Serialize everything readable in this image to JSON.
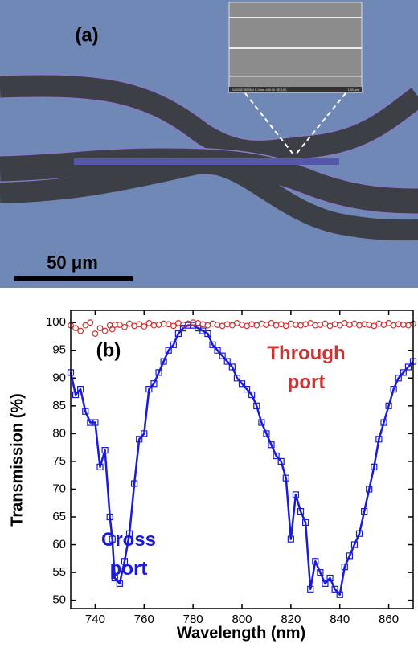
{
  "image_panel": {
    "label": "(a)",
    "scale_bar": "50 μm",
    "inset_caption": "SU8240 30.0kV 6.2mm x30.0k SE(UL)",
    "inset_scale": "1.00μm"
  },
  "chart_data": {
    "type": "line",
    "annotation": "(b)",
    "x_label": "Wavelength (nm)",
    "y_label": "Transmission (%)",
    "xlim": [
      730,
      870
    ],
    "ylim": [
      48.5,
      102.2
    ],
    "xticks": [
      740,
      760,
      780,
      800,
      820,
      840,
      860
    ],
    "yticks": [
      50,
      55,
      60,
      65,
      70,
      75,
      80,
      85,
      90,
      95,
      100
    ],
    "x": [
      730,
      732,
      734,
      736,
      738,
      740,
      742,
      744,
      746,
      747,
      748,
      750,
      752,
      754,
      756,
      758,
      760,
      762,
      764,
      766,
      768,
      770,
      772,
      774,
      776,
      778,
      780,
      782,
      784,
      786,
      788,
      790,
      792,
      794,
      796,
      798,
      800,
      802,
      804,
      806,
      808,
      810,
      812,
      814,
      816,
      818,
      820,
      822,
      824,
      826,
      828,
      830,
      832,
      834,
      836,
      838,
      840,
      842,
      844,
      846,
      848,
      850,
      852,
      854,
      856,
      858,
      860,
      862,
      864,
      866,
      868,
      870
    ],
    "series": [
      {
        "name": "Cross port",
        "color": "#1a1adb",
        "marker": "square",
        "line": true,
        "values": [
          91,
          87,
          88,
          84,
          82,
          82,
          74,
          77,
          65,
          61,
          54,
          53,
          57,
          62,
          71,
          79,
          80,
          88,
          89,
          91,
          93,
          95,
          96,
          98,
          99,
          99.5,
          99.5,
          99,
          98.5,
          98,
          96,
          95,
          94,
          93,
          92,
          90,
          89,
          88,
          87,
          85,
          82,
          80,
          78,
          76,
          75,
          72,
          61,
          69,
          66,
          64,
          52,
          57,
          55,
          53,
          54,
          52,
          51,
          56,
          58,
          60,
          62,
          66,
          70,
          74,
          79,
          82,
          85,
          88,
          90,
          91,
          92,
          93
        ]
      },
      {
        "name": "Through port",
        "color": "#cc3333",
        "marker": "circle",
        "line": false,
        "values": [
          99.5,
          99,
          98.5,
          99.5,
          100,
          98,
          99,
          98.5,
          99.5,
          98.8,
          99.6,
          99.6,
          99.2,
          99.8,
          99.4,
          99.7,
          99.3,
          99.9,
          99.5,
          99.6,
          99.8,
          99.7,
          99.4,
          99.9,
          99.6,
          99.8,
          100,
          99.9,
          99.7,
          99.5,
          99.8,
          99.6,
          99.4,
          99.7,
          99.5,
          99.9,
          99.6,
          99.4,
          99.7,
          99.5,
          99.8,
          99.6,
          99.9,
          99.5,
          99.7,
          99.4,
          99.8,
          99.6,
          99.5,
          99.7,
          99.9,
          99.5,
          99.6,
          99.8,
          99.4,
          99.7,
          99.5,
          99.9,
          99.6,
          99.8,
          99.5,
          99.7,
          99.6,
          99.4,
          99.8,
          99.6,
          99.9,
          99.5,
          99.7,
          99.6,
          99.5,
          99.8
        ]
      }
    ]
  }
}
